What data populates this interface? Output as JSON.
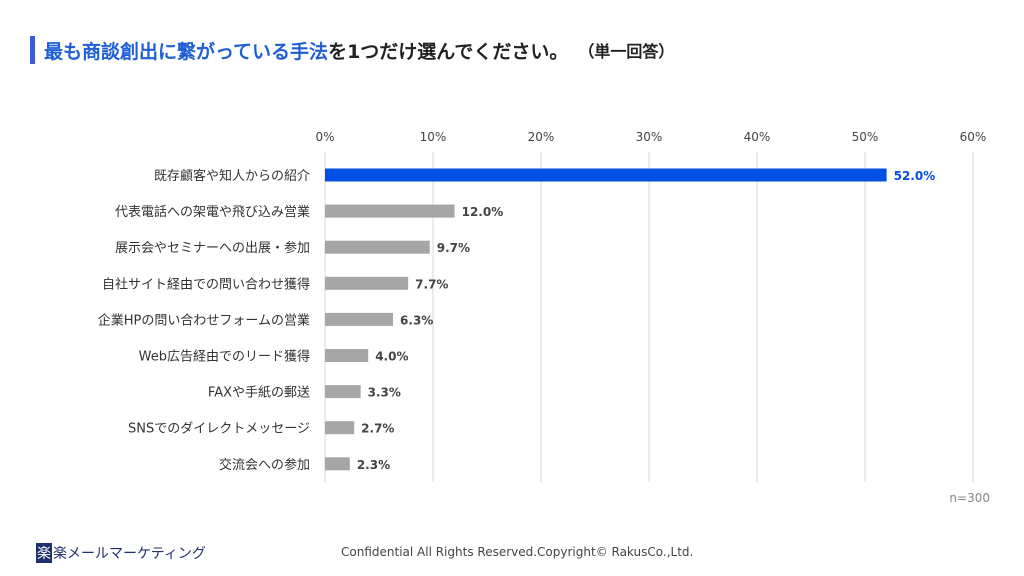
{
  "title": {
    "highlight": "最も商談創出に繋がっている手法",
    "rest": "を1つだけ選んでください。",
    "note": "（単一回答）"
  },
  "chart_data": {
    "type": "bar",
    "orientation": "horizontal",
    "categories": [
      "既存顧客や知人からの紹介",
      "代表電話への架電や飛び込み営業",
      "展示会やセミナーへの出展・参加",
      "自社サイト経由での問い合わせ獲得",
      "企業HPの問い合わせフォームの営業",
      "Web広告経由でのリード獲得",
      "FAXや手紙の郵送",
      "SNSでのダイレクトメッセージ",
      "交流会への参加"
    ],
    "values": [
      52.0,
      12.0,
      9.7,
      7.7,
      6.3,
      4.0,
      3.3,
      2.7,
      2.3
    ],
    "data_labels": [
      "52.0%",
      "12.0%",
      "9.7%",
      "7.7%",
      "6.3%",
      "4.0%",
      "3.3%",
      "2.7%",
      "2.3%"
    ],
    "xlim": [
      0,
      60
    ],
    "ticks": [
      "0%",
      "10%",
      "20%",
      "30%",
      "40%",
      "50%",
      "60%"
    ],
    "tick_values": [
      0,
      10,
      20,
      30,
      40,
      50,
      60
    ],
    "grid": true,
    "colors": {
      "highlight": "#0050e6",
      "default": "#a6a6a6"
    },
    "annotation": "n=300"
  },
  "footer": {
    "logo_mark": "楽",
    "logo_text": "楽メールマーケティング",
    "copyright": "Confidential All Rights Reserved.Copyright© RakusCo.,Ltd."
  }
}
